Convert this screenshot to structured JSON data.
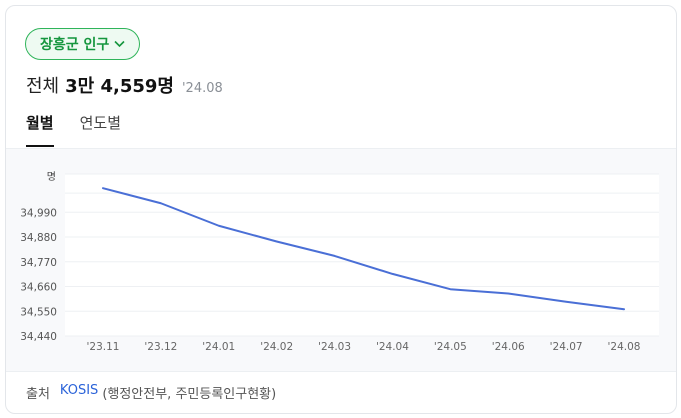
{
  "chip": {
    "label": "장흥군 인구"
  },
  "summary": {
    "label": "전체",
    "value": "3만 4,559명",
    "date": "'24.08"
  },
  "tabs": [
    {
      "label": "월별",
      "active": true
    },
    {
      "label": "연도별",
      "active": false
    }
  ],
  "source": {
    "label": "출처",
    "link": "KOSIS",
    "org": "(행정안전부, 주민등록인구현황)"
  },
  "colors": {
    "line": "#4a6fd6",
    "chip": "#15963e",
    "link": "#2b63d9"
  },
  "chart_data": {
    "type": "line",
    "ylabel": "명",
    "ylim": [
      34440,
      35160
    ],
    "yticks": [
      34440,
      34550,
      34660,
      34770,
      34880,
      34990
    ],
    "ytick_labels": [
      "34,440",
      "34,550",
      "34,660",
      "34,770",
      "34,880",
      "34,990"
    ],
    "categories": [
      "'23.11",
      "'23.12",
      "'24.01",
      "'24.02",
      "'24.03",
      "'24.04",
      "'24.05",
      "'24.06",
      "'24.07",
      "'24.08"
    ],
    "values": [
      35097,
      35030,
      34930,
      34860,
      34796,
      34716,
      34648,
      34629,
      34592,
      34559
    ],
    "grid": true
  }
}
